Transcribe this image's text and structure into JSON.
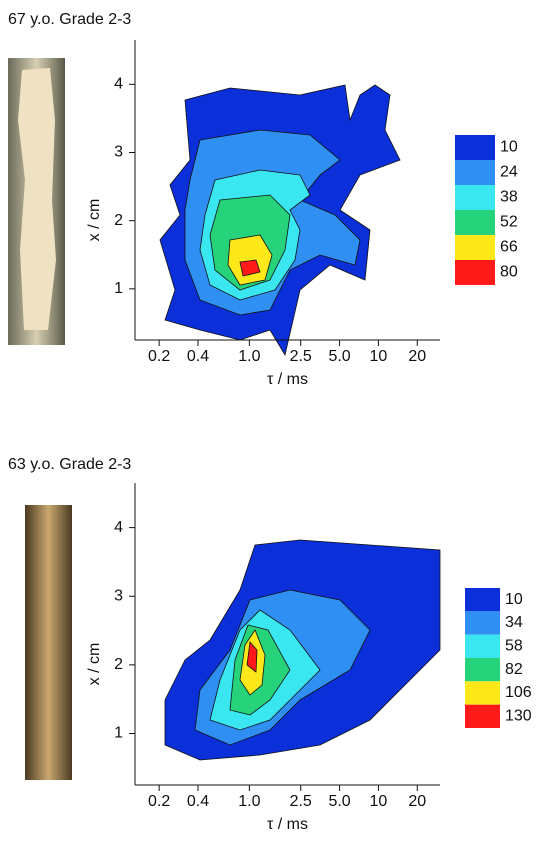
{
  "chart_data": [
    {
      "type": "contour",
      "title": "67 y.o. Grade 2-3",
      "xlabel": "τ / ms",
      "ylabel": "x / cm",
      "xscale": "log",
      "xlim": [
        0.13,
        30
      ],
      "ylim": [
        0.25,
        4.65
      ],
      "xticks": [
        0.2,
        0.4,
        {
          "value": 1,
          "label": "1.0"
        },
        2.5,
        {
          "value": 5,
          "label": "5.0"
        },
        10,
        20
      ],
      "yticks": [
        1,
        2,
        3,
        4
      ],
      "levels": [
        10,
        24,
        38,
        52,
        66,
        80
      ],
      "colors": [
        "#0b2fd8",
        "#2f8ff2",
        "#3ae6f0",
        "#26d27a",
        "#ffe81a",
        "#ff1a1a"
      ]
    },
    {
      "type": "contour",
      "title": "63 y.o. Grade 2-3",
      "xlabel": "τ / ms",
      "ylabel": "x / cm",
      "xscale": "log",
      "xlim": [
        0.13,
        30
      ],
      "ylim": [
        0.25,
        4.65
      ],
      "xticks": [
        0.2,
        0.4,
        {
          "value": 1,
          "label": "1.0"
        },
        2.5,
        {
          "value": 5,
          "label": "5.0"
        },
        10,
        20
      ],
      "yticks": [
        1,
        2,
        3,
        4
      ],
      "levels": [
        10,
        34,
        58,
        82,
        106,
        130
      ],
      "colors": [
        "#0b2fd8",
        "#2f8ff2",
        "#3ae6f0",
        "#26d27a",
        "#ffe81a",
        "#ff1a1a"
      ]
    }
  ]
}
